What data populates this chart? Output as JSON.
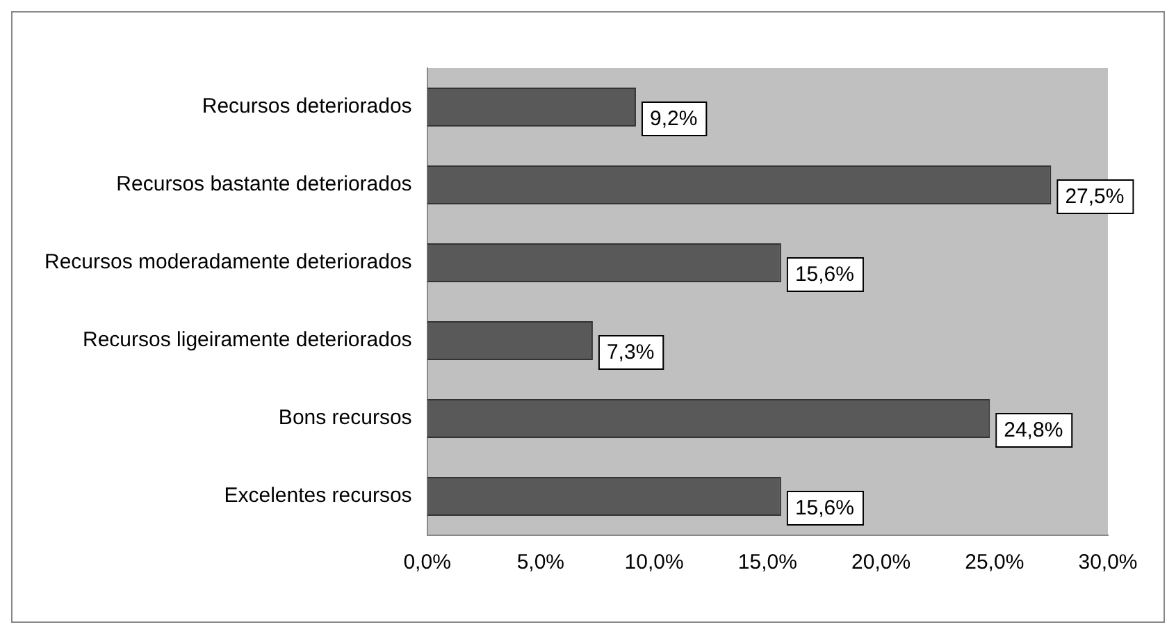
{
  "chart_data": {
    "type": "bar",
    "orientation": "horizontal",
    "categories": [
      "Recursos deteriorados",
      "Recursos bastante deteriorados",
      "Recursos moderadamente deteriorados",
      "Recursos ligeiramente deteriorados",
      "Bons recursos",
      "Excelentes recursos"
    ],
    "values": [
      9.2,
      27.5,
      15.6,
      7.3,
      24.8,
      15.6
    ],
    "value_labels": [
      "9,2%",
      "27,5%",
      "15,6%",
      "7,3%",
      "24,8%",
      "15,6%"
    ],
    "color": "#595959",
    "xlim": [
      0,
      30
    ],
    "xticks": [
      {
        "value": 0,
        "label": "0,0%"
      },
      {
        "value": 5,
        "label": "5,0%"
      },
      {
        "value": 10,
        "label": "10,0%"
      },
      {
        "value": 15,
        "label": "15,0%"
      },
      {
        "value": 20,
        "label": "20,0%"
      },
      {
        "value": 25,
        "label": "25,0%"
      },
      {
        "value": 30,
        "label": "30,0%"
      }
    ],
    "grid": false,
    "legend": false
  }
}
